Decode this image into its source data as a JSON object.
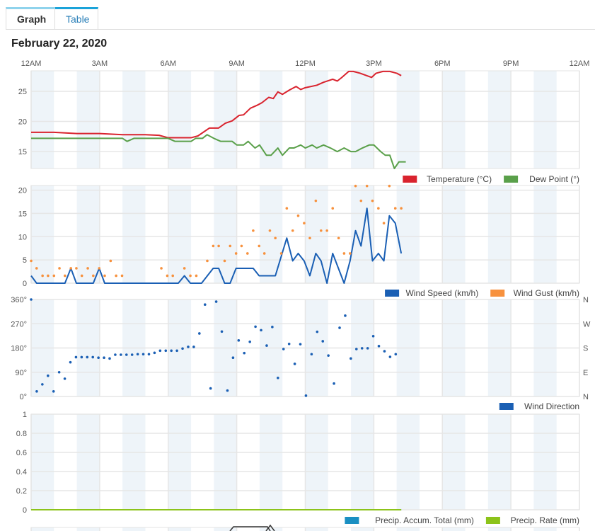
{
  "tabs": [
    {
      "label": "Graph",
      "active": true
    },
    {
      "label": "Table",
      "active": false
    }
  ],
  "date_title": "February 22, 2020",
  "time_labels": [
    "12AM",
    "3AM",
    "6AM",
    "9AM",
    "12PM",
    "3PM",
    "6PM",
    "9PM",
    "12AM"
  ],
  "chart_data": [
    {
      "type": "line",
      "name": "temperature-panel",
      "x_unit": "hours since midnight",
      "xlim": [
        0,
        24
      ],
      "ylim": [
        12.2,
        28.4
      ],
      "yticks": [
        15,
        20,
        25
      ],
      "ytick_labels": [
        "15",
        "20",
        "25"
      ],
      "series": [
        {
          "name": "Temperature (°C)",
          "color": "#d9232e",
          "points": [
            [
              0,
              18.2
            ],
            [
              1,
              18.2
            ],
            [
              1.5,
              18.1
            ],
            [
              2,
              18.0
            ],
            [
              3,
              18.0
            ],
            [
              4,
              17.8
            ],
            [
              5,
              17.8
            ],
            [
              5.6,
              17.7
            ],
            [
              6,
              17.3
            ],
            [
              7,
              17.3
            ],
            [
              7.3,
              17.6
            ],
            [
              7.8,
              18.9
            ],
            [
              8.2,
              18.9
            ],
            [
              8.5,
              19.7
            ],
            [
              8.8,
              20.1
            ],
            [
              9.1,
              21.0
            ],
            [
              9.3,
              21.1
            ],
            [
              9.6,
              22.2
            ],
            [
              9.9,
              22.7
            ],
            [
              10.1,
              23.1
            ],
            [
              10.4,
              24.0
            ],
            [
              10.6,
              23.8
            ],
            [
              10.8,
              24.9
            ],
            [
              11.0,
              24.5
            ],
            [
              11.3,
              25.2
            ],
            [
              11.6,
              25.8
            ],
            [
              11.8,
              25.3
            ],
            [
              12.0,
              25.6
            ],
            [
              12.5,
              26.0
            ],
            [
              12.8,
              26.5
            ],
            [
              13.2,
              27.0
            ],
            [
              13.4,
              26.7
            ],
            [
              13.6,
              27.3
            ],
            [
              13.9,
              28.3
            ],
            [
              14.1,
              28.3
            ],
            [
              14.4,
              28.0
            ],
            [
              14.9,
              27.3
            ],
            [
              15.1,
              28.0
            ],
            [
              15.4,
              28.3
            ],
            [
              15.7,
              28.3
            ],
            [
              16.0,
              28.0
            ],
            [
              16.2,
              27.6
            ]
          ]
        },
        {
          "name": "Dew Point (°)",
          "color": "#5aa04a",
          "points": [
            [
              0,
              17.2
            ],
            [
              4.0,
              17.2
            ],
            [
              4.2,
              16.7
            ],
            [
              4.5,
              17.2
            ],
            [
              6.0,
              17.2
            ],
            [
              6.3,
              16.7
            ],
            [
              7.0,
              16.7
            ],
            [
              7.2,
              17.2
            ],
            [
              7.5,
              17.2
            ],
            [
              7.7,
              17.8
            ],
            [
              8.0,
              17.2
            ],
            [
              8.3,
              16.7
            ],
            [
              8.8,
              16.7
            ],
            [
              9.0,
              16.1
            ],
            [
              9.3,
              16.1
            ],
            [
              9.5,
              16.7
            ],
            [
              9.8,
              15.6
            ],
            [
              10.0,
              16.1
            ],
            [
              10.3,
              14.4
            ],
            [
              10.5,
              14.4
            ],
            [
              10.8,
              15.6
            ],
            [
              11.0,
              14.4
            ],
            [
              11.3,
              15.6
            ],
            [
              11.5,
              15.6
            ],
            [
              11.8,
              16.1
            ],
            [
              12.0,
              15.6
            ],
            [
              12.3,
              16.1
            ],
            [
              12.5,
              15.6
            ],
            [
              12.8,
              16.1
            ],
            [
              13.1,
              15.6
            ],
            [
              13.4,
              15.0
            ],
            [
              13.7,
              15.6
            ],
            [
              14.0,
              15.0
            ],
            [
              14.2,
              15.0
            ],
            [
              14.5,
              15.6
            ],
            [
              14.8,
              16.1
            ],
            [
              15.0,
              16.1
            ],
            [
              15.3,
              15.0
            ],
            [
              15.5,
              14.4
            ],
            [
              15.7,
              14.4
            ],
            [
              15.9,
              12.2
            ],
            [
              16.1,
              13.3
            ],
            [
              16.4,
              13.3
            ]
          ]
        }
      ]
    },
    {
      "type": "line+scatter",
      "name": "wind-panel",
      "xlim": [
        0,
        24
      ],
      "ylim": [
        0,
        21
      ],
      "yticks": [
        0,
        5,
        10,
        15,
        20
      ],
      "ytick_labels": [
        "0",
        "5",
        "10",
        "15",
        "20"
      ],
      "series": [
        {
          "name": "Wind Speed (km/h)",
          "color": "#1a5fb4",
          "style": "line",
          "points": [
            [
              0,
              1.6
            ],
            [
              0.24,
              0
            ],
            [
              1.48,
              0
            ],
            [
              1.74,
              3.2
            ],
            [
              1.98,
              0
            ],
            [
              2.72,
              0
            ],
            [
              2.98,
              3.2
            ],
            [
              3.22,
              0
            ],
            [
              6.44,
              0
            ],
            [
              6.71,
              1.6
            ],
            [
              6.97,
              0
            ],
            [
              7.46,
              0
            ],
            [
              7.97,
              3.2
            ],
            [
              8.21,
              3.2
            ],
            [
              8.47,
              0
            ],
            [
              8.71,
              0
            ],
            [
              8.97,
              3.2
            ],
            [
              9.72,
              3.2
            ],
            [
              9.98,
              1.6
            ],
            [
              10.69,
              1.6
            ],
            [
              11.19,
              9.7
            ],
            [
              11.45,
              4.8
            ],
            [
              11.69,
              6.4
            ],
            [
              11.95,
              4.8
            ],
            [
              12.2,
              1.6
            ],
            [
              12.46,
              6.4
            ],
            [
              12.69,
              4.8
            ],
            [
              12.95,
              0
            ],
            [
              13.2,
              6.4
            ],
            [
              13.7,
              0
            ],
            [
              13.96,
              4.8
            ],
            [
              14.2,
              11.3
            ],
            [
              14.44,
              8.0
            ],
            [
              14.7,
              16.1
            ],
            [
              14.94,
              4.8
            ],
            [
              15.2,
              6.4
            ],
            [
              15.44,
              4.8
            ],
            [
              15.68,
              14.5
            ],
            [
              15.94,
              12.9
            ],
            [
              16.2,
              6.4
            ]
          ]
        },
        {
          "name": "Wind Gust (km/h)",
          "color": "#f7913d",
          "style": "dots",
          "points": [
            [
              0,
              4.8
            ],
            [
              0.24,
              3.2
            ],
            [
              0.5,
              1.6
            ],
            [
              0.74,
              1.6
            ],
            [
              1.0,
              1.6
            ],
            [
              1.24,
              3.2
            ],
            [
              1.48,
              1.6
            ],
            [
              1.74,
              3.2
            ],
            [
              1.98,
              3.2
            ],
            [
              2.22,
              1.6
            ],
            [
              2.48,
              3.2
            ],
            [
              2.72,
              1.6
            ],
            [
              2.98,
              3.2
            ],
            [
              3.22,
              1.6
            ],
            [
              3.48,
              4.8
            ],
            [
              3.72,
              1.6
            ],
            [
              3.98,
              1.6
            ],
            [
              5.7,
              3.2
            ],
            [
              5.96,
              1.6
            ],
            [
              6.2,
              1.6
            ],
            [
              6.71,
              3.2
            ],
            [
              6.97,
              1.6
            ],
            [
              7.23,
              1.6
            ],
            [
              7.71,
              4.8
            ],
            [
              7.97,
              8.0
            ],
            [
              8.21,
              8.0
            ],
            [
              8.47,
              4.8
            ],
            [
              8.71,
              8.0
            ],
            [
              8.97,
              6.4
            ],
            [
              9.21,
              8.0
            ],
            [
              9.47,
              6.4
            ],
            [
              9.72,
              11.3
            ],
            [
              9.98,
              8.0
            ],
            [
              10.21,
              6.4
            ],
            [
              10.45,
              11.3
            ],
            [
              10.69,
              9.7
            ],
            [
              10.95,
              6.4
            ],
            [
              11.19,
              16.1
            ],
            [
              11.45,
              11.3
            ],
            [
              11.69,
              14.5
            ],
            [
              11.95,
              12.9
            ],
            [
              12.2,
              9.7
            ],
            [
              12.46,
              17.7
            ],
            [
              12.69,
              11.3
            ],
            [
              12.95,
              11.3
            ],
            [
              13.2,
              16.1
            ],
            [
              13.46,
              9.7
            ],
            [
              13.7,
              6.4
            ],
            [
              13.96,
              6.4
            ],
            [
              14.2,
              20.9
            ],
            [
              14.44,
              17.7
            ],
            [
              14.7,
              20.9
            ],
            [
              14.94,
              17.7
            ],
            [
              15.2,
              16.1
            ],
            [
              15.44,
              12.9
            ],
            [
              15.68,
              20.9
            ],
            [
              15.94,
              16.1
            ],
            [
              16.2,
              16.1
            ]
          ]
        }
      ]
    },
    {
      "type": "scatter",
      "name": "wind-direction-panel",
      "xlim": [
        0,
        24
      ],
      "ylim": [
        0,
        360
      ],
      "yticks": [
        0,
        90,
        180,
        270,
        360
      ],
      "ytick_labels": [
        "0°",
        "90°",
        "180°",
        "270°",
        "360°"
      ],
      "right_labels": [
        "N",
        "E",
        "S",
        "W",
        "N"
      ],
      "x_step_hours": 0.2455,
      "series": [
        {
          "name": "Wind Direction",
          "color": "#1a5fb4",
          "style": "dots",
          "values": [
            360,
            19,
            45,
            77,
            19,
            90,
            66,
            127,
            146,
            146,
            146,
            146,
            144,
            144,
            141,
            155,
            155,
            155,
            155,
            157,
            157,
            157,
            162,
            170,
            170,
            170,
            170,
            178,
            184,
            184,
            234,
            341,
            30,
            352,
            241,
            22,
            144,
            208,
            161,
            203,
            259,
            246,
            189,
            258,
            69,
            176,
            195,
            121,
            194,
            3,
            157,
            240,
            205,
            152,
            48,
            255,
            300,
            141,
            176,
            179,
            179,
            224,
            187,
            168,
            147,
            157
          ]
        }
      ]
    },
    {
      "type": "line",
      "name": "precip-panel",
      "xlim": [
        0,
        24
      ],
      "ylim": [
        0,
        1
      ],
      "yticks": [
        0,
        0.2,
        0.4,
        0.6,
        0.8,
        1
      ],
      "ytick_labels": [
        "0",
        "0.2",
        "0.4",
        "0.6",
        "0.8",
        "1"
      ],
      "series": [
        {
          "name": "Precip. Accum. Total (mm)",
          "color": "#1a8fc2",
          "points": [
            [
              0,
              0
            ],
            [
              16.2,
              0
            ]
          ]
        },
        {
          "name": "Precip. Rate (mm)",
          "color": "#8cc31a",
          "points": [
            [
              0,
              0
            ],
            [
              16.2,
              0
            ]
          ]
        }
      ]
    }
  ],
  "colors": {
    "band": "#eef4f9",
    "grid": "#e6e6e6"
  }
}
